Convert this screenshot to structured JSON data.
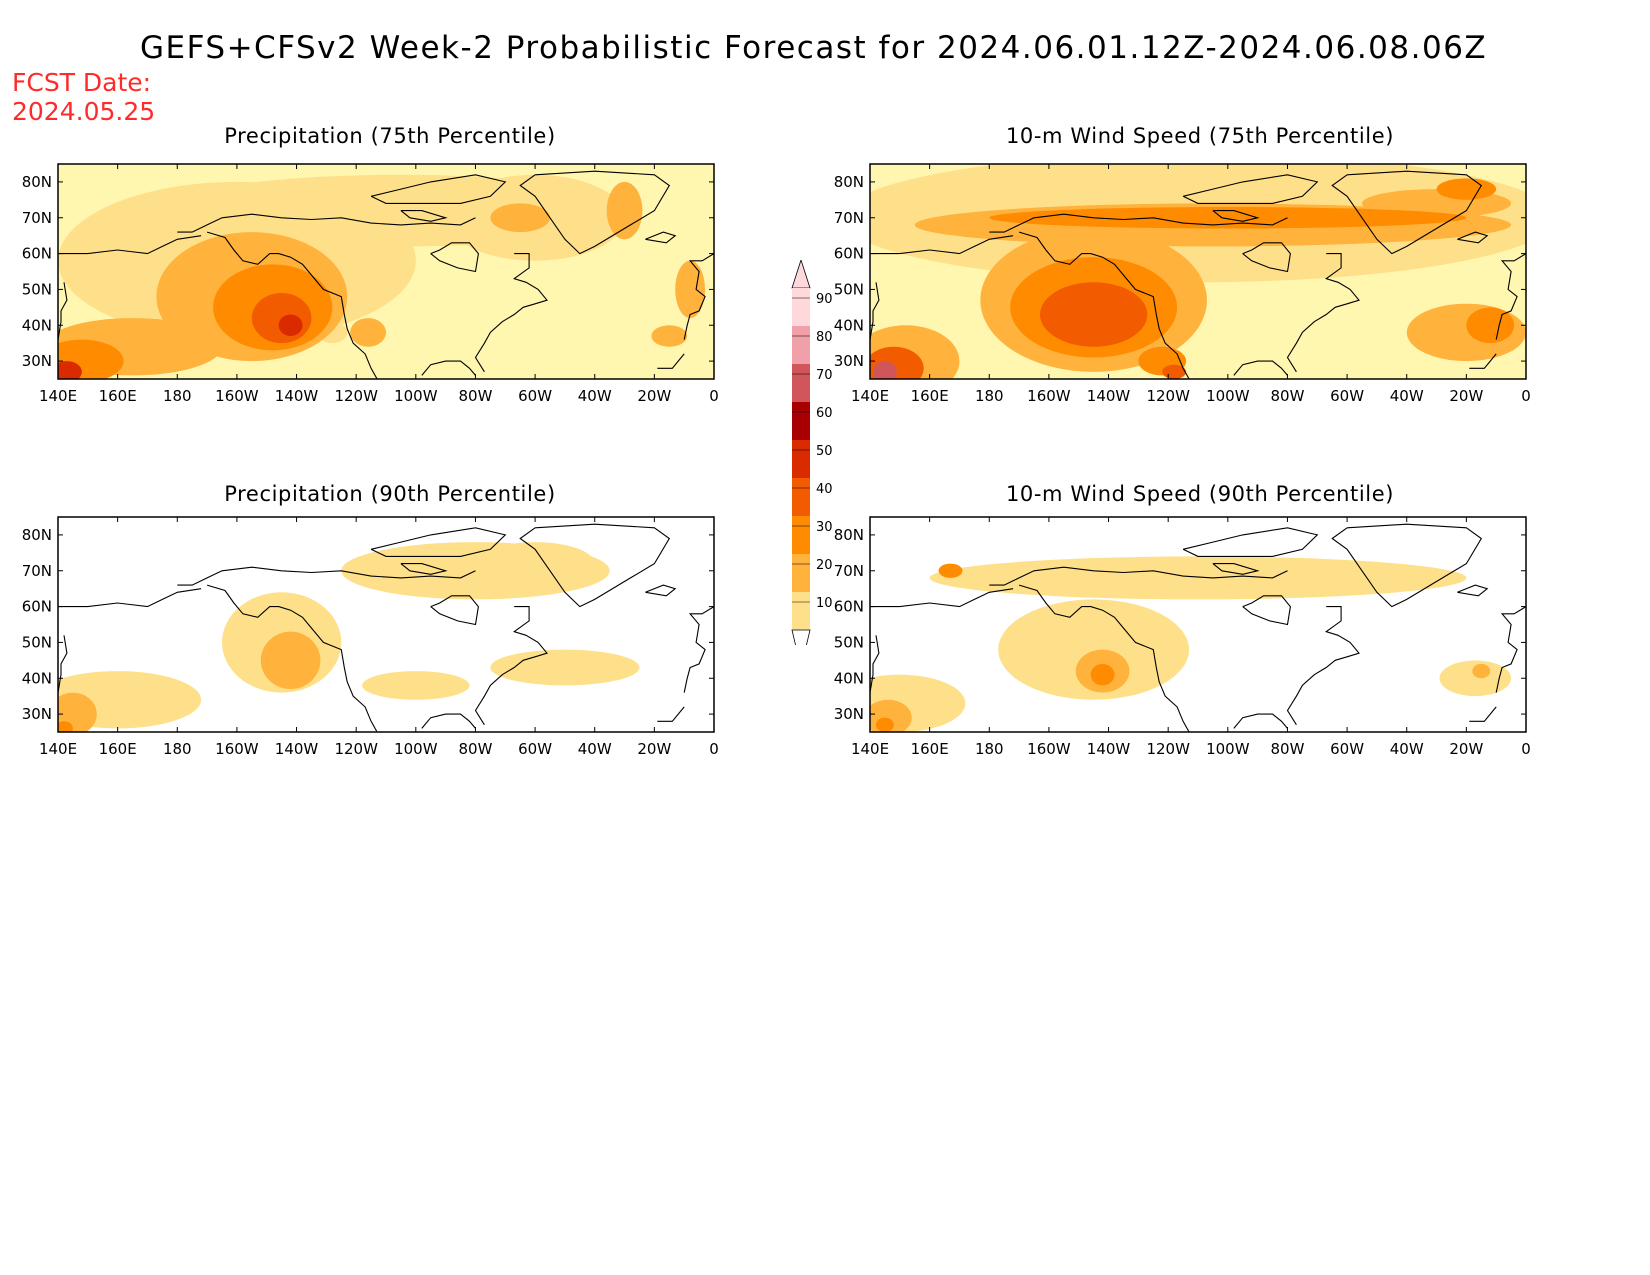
{
  "title": "GEFS+CFSv2 Week-2 Probabilistic Forecast for 2024.06.01.12Z-2024.06.08.06Z",
  "fcst_label": "FCST Date:",
  "fcst_date": "2024.05.25",
  "panels": [
    {
      "title": "Precipitation (75th Percentile)",
      "intensity": 1.0
    },
    {
      "title": "10-m Wind Speed (75th Percentile)",
      "intensity": 1.15
    },
    {
      "title": "Precipitation (90th Percentile)",
      "intensity": 0.4
    },
    {
      "title": "10-m Wind Speed (90th Percentile)",
      "intensity": 0.55
    }
  ],
  "lon_ticks": [
    "140E",
    "160E",
    "180",
    "160W",
    "140W",
    "120W",
    "100W",
    "80W",
    "60W",
    "40W",
    "20W",
    "0"
  ],
  "lat_ticks": [
    "80N",
    "70N",
    "60N",
    "50N",
    "40N",
    "30N"
  ],
  "colorbar": {
    "levels": [
      "10",
      "20",
      "30",
      "40",
      "50",
      "60",
      "70",
      "80",
      "90"
    ],
    "colors": [
      "#fff6b0",
      "#ffe08a",
      "#ffb23c",
      "#ff8c00",
      "#f25b00",
      "#d92a00",
      "#a80000",
      "#d0565c",
      "#f0a0a8",
      "#ffd8dc"
    ]
  },
  "colors": {
    "title_red": "#ff2a2a",
    "coastline": "#000000"
  }
}
